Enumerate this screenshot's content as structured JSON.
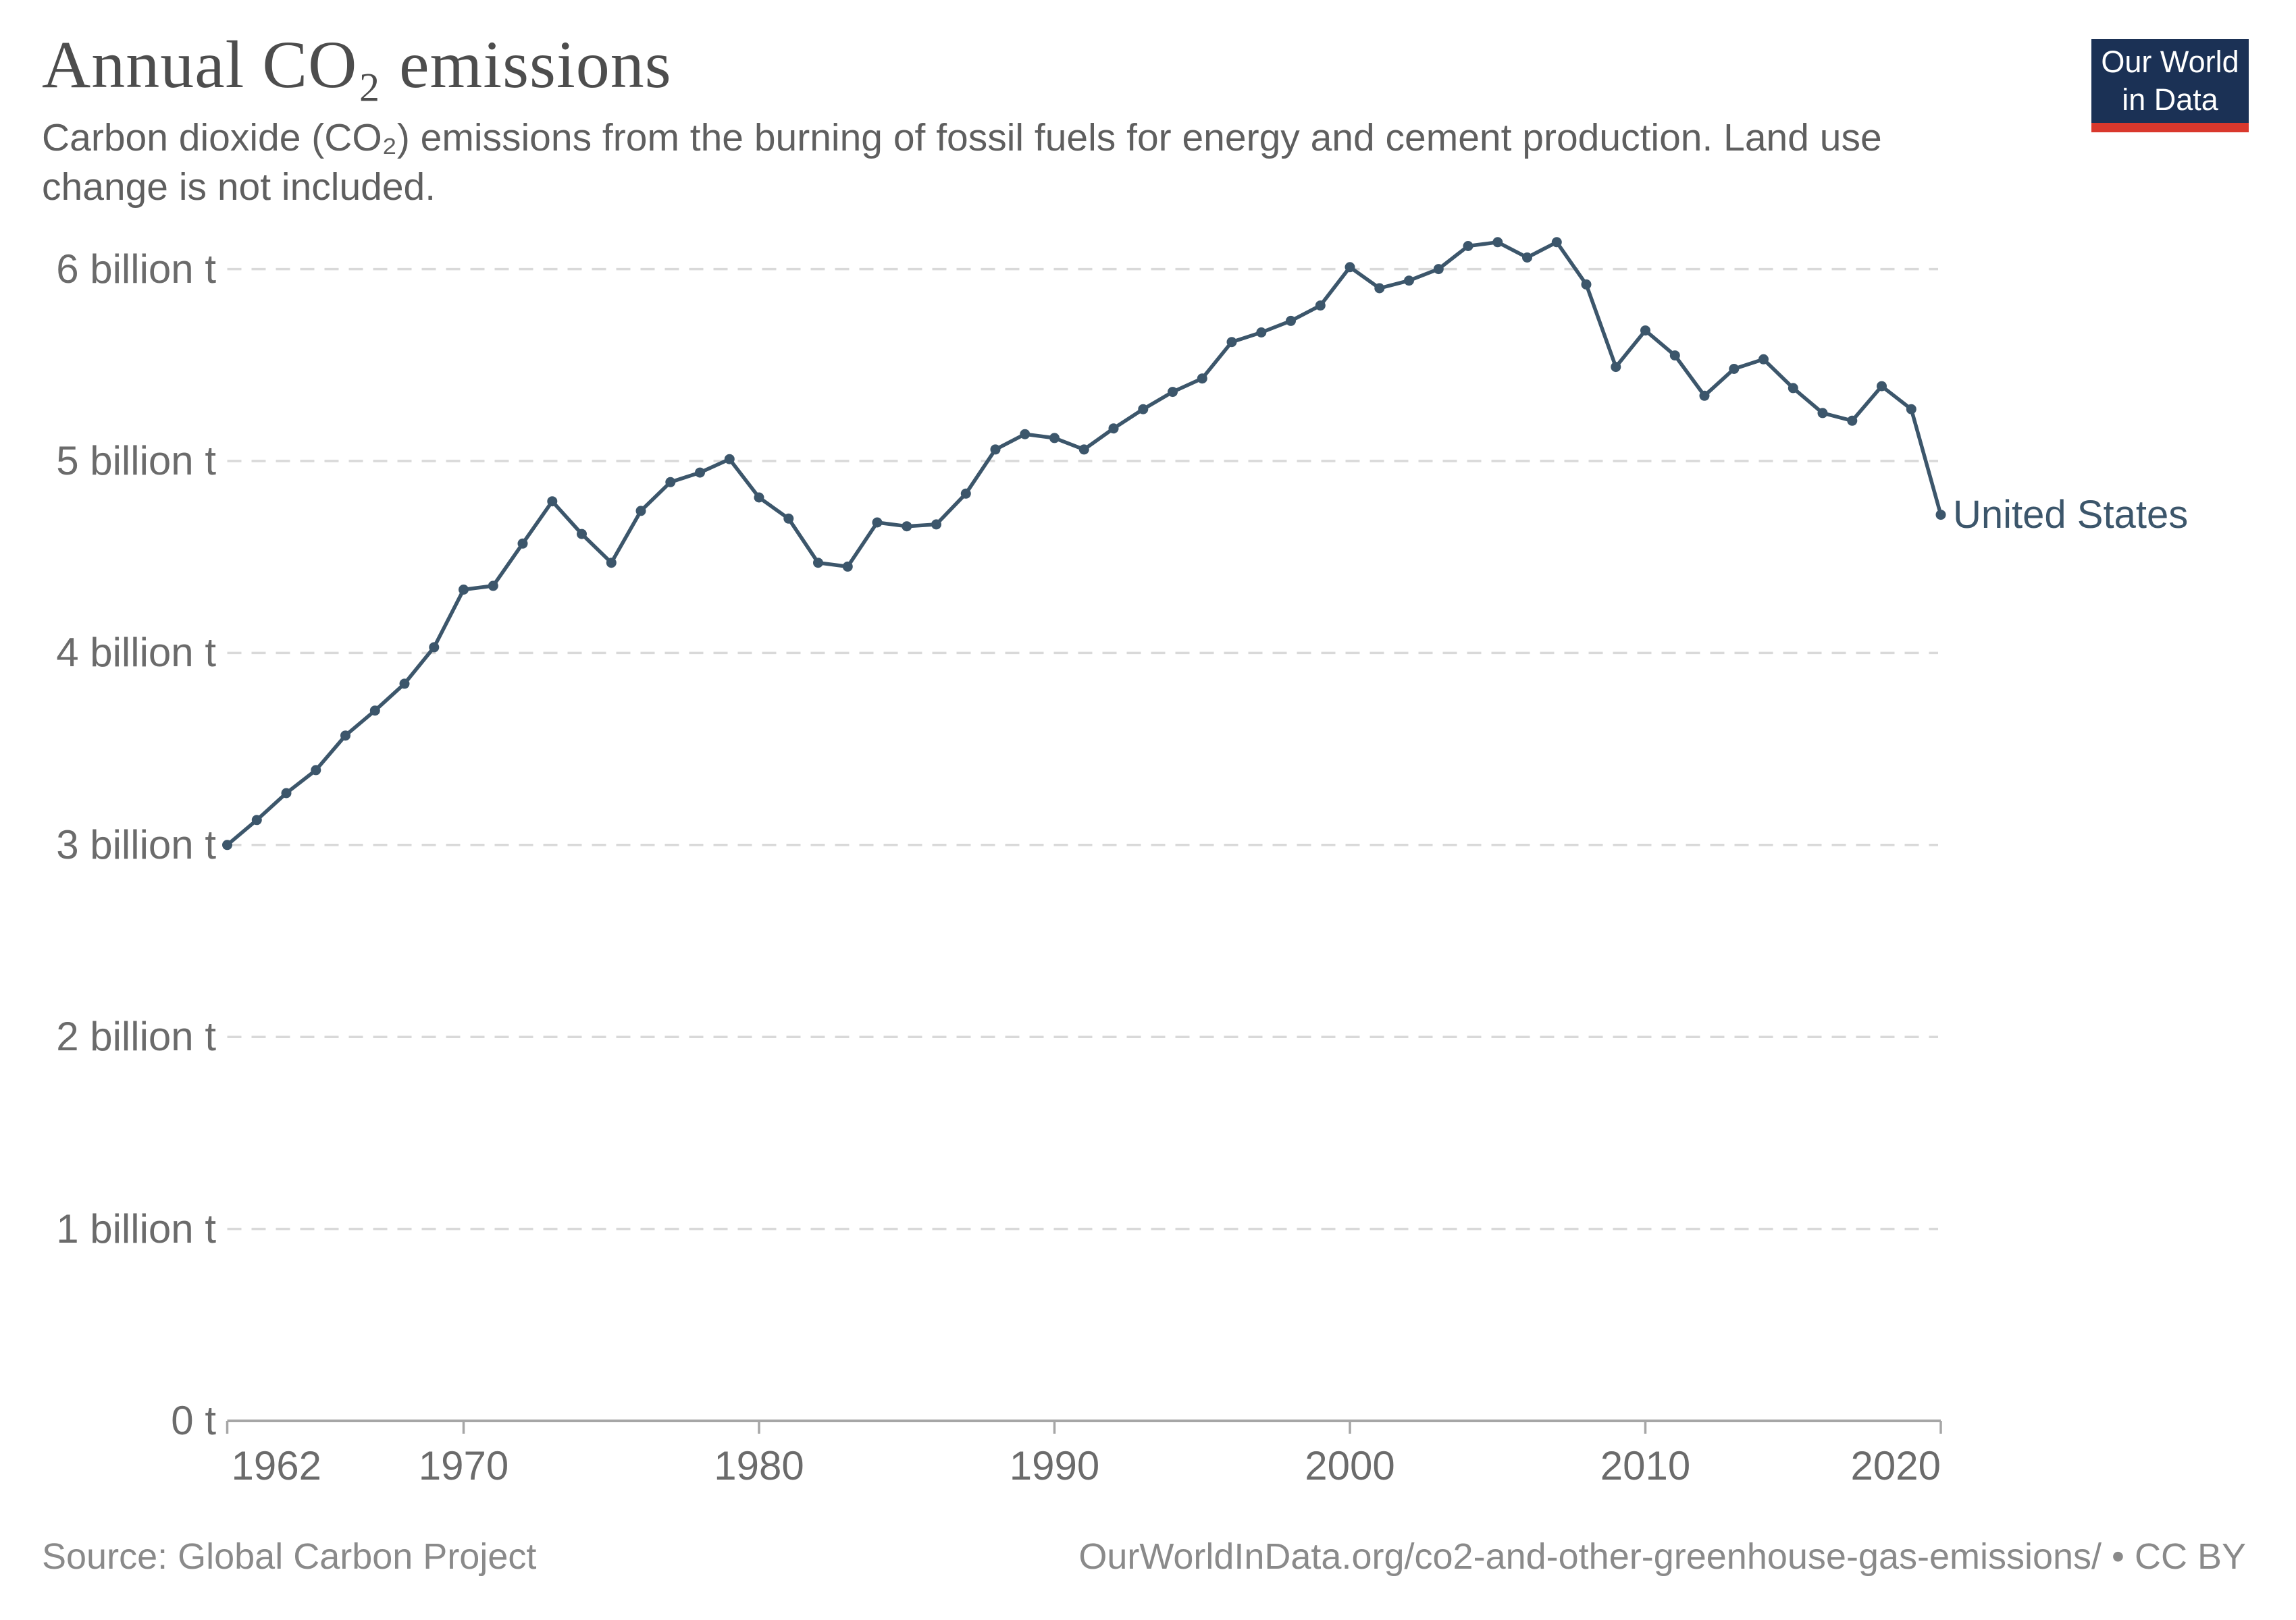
{
  "header": {
    "title": "Annual CO₂ emissions",
    "subtitle_line1": "Carbon dioxide (CO₂) emissions from the burning of fossil fuels for energy and cement production. Land use",
    "subtitle_line2": "change is not included."
  },
  "logo": {
    "line1": "Our World",
    "line2": "in Data",
    "bg_color": "#1b3155",
    "bar_color": "#d9382d"
  },
  "chart_data": {
    "type": "line",
    "title": "Annual CO₂ emissions",
    "xlabel": "",
    "ylabel": "",
    "xlim": [
      1962,
      2020
    ],
    "ylim": [
      0,
      6
    ],
    "grid": "dashed horizontal",
    "legend_position": "end-of-line label",
    "x_ticks": [
      1962,
      1970,
      1980,
      1990,
      2000,
      2010,
      2020
    ],
    "y_ticks": [
      {
        "value": 0,
        "label": "0 t"
      },
      {
        "value": 1,
        "label": "1 billion t"
      },
      {
        "value": 2,
        "label": "2 billion t"
      },
      {
        "value": 3,
        "label": "3 billion t"
      },
      {
        "value": 4,
        "label": "4 billion t"
      },
      {
        "value": 5,
        "label": "5 billion t"
      },
      {
        "value": 6,
        "label": "6 billion t"
      }
    ],
    "series": [
      {
        "name": "United States",
        "color": "#3c566b",
        "x": [
          1962,
          1963,
          1964,
          1965,
          1966,
          1967,
          1968,
          1969,
          1970,
          1971,
          1972,
          1973,
          1974,
          1975,
          1976,
          1977,
          1978,
          1979,
          1980,
          1981,
          1982,
          1983,
          1984,
          1985,
          1986,
          1987,
          1988,
          1989,
          1990,
          1991,
          1992,
          1993,
          1994,
          1995,
          1996,
          1997,
          1998,
          1999,
          2000,
          2001,
          2002,
          2003,
          2004,
          2005,
          2006,
          2007,
          2008,
          2009,
          2010,
          2011,
          2012,
          2013,
          2014,
          2015,
          2016,
          2017,
          2018,
          2019,
          2020
        ],
        "values": [
          3.0,
          3.13,
          3.27,
          3.39,
          3.57,
          3.7,
          3.84,
          4.03,
          4.33,
          4.35,
          4.57,
          4.79,
          4.62,
          4.47,
          4.74,
          4.89,
          4.94,
          5.01,
          4.81,
          4.7,
          4.47,
          4.45,
          4.68,
          4.66,
          4.67,
          4.83,
          5.06,
          5.14,
          5.12,
          5.06,
          5.17,
          5.27,
          5.36,
          5.43,
          5.62,
          5.67,
          5.73,
          5.81,
          6.01,
          5.9,
          5.94,
          6.0,
          6.12,
          6.14,
          6.06,
          6.14,
          5.92,
          5.49,
          5.68,
          5.55,
          5.34,
          5.48,
          5.53,
          5.38,
          5.25,
          5.21,
          5.39,
          5.27,
          4.72
        ],
        "unit": "billion t"
      }
    ],
    "colors": {
      "gridline": "#d9d9d9",
      "axis": "#a6a6a6",
      "tick_label": "#6b6b6b"
    }
  },
  "footer": {
    "source": "Source: Global Carbon Project",
    "link": "OurWorldInData.org/co2-and-other-greenhouse-gas-emissions/ • CC BY"
  }
}
